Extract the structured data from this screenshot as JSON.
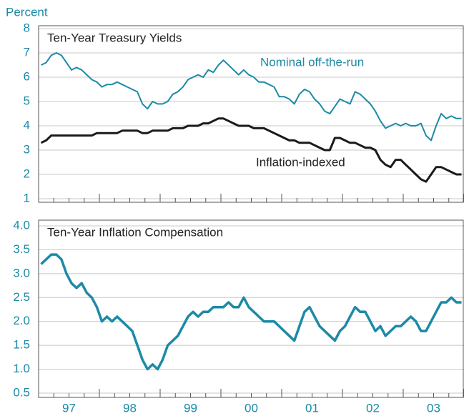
{
  "chart_data": [
    {
      "type": "line",
      "y_label": "Percent",
      "title": "Ten-Year Treasury Yields",
      "ylim": [
        1,
        8
      ],
      "yticks": [
        1,
        2,
        3,
        4,
        5,
        6,
        7,
        8
      ],
      "grid": true,
      "series": [
        {
          "name": "Nominal off-the-run",
          "color": "#1c8aa6",
          "values": [
            6.5,
            6.6,
            6.9,
            7.0,
            6.9,
            6.6,
            6.3,
            6.4,
            6.3,
            6.1,
            5.9,
            5.8,
            5.6,
            5.7,
            5.7,
            5.8,
            5.7,
            5.6,
            5.5,
            5.4,
            4.9,
            4.7,
            5.0,
            4.9,
            4.9,
            5.0,
            5.3,
            5.4,
            5.6,
            5.9,
            6.0,
            6.1,
            6.0,
            6.3,
            6.2,
            6.5,
            6.7,
            6.5,
            6.3,
            6.1,
            6.3,
            6.1,
            6.0,
            5.8,
            5.8,
            5.7,
            5.6,
            5.2,
            5.2,
            5.1,
            4.9,
            5.3,
            5.5,
            5.4,
            5.1,
            4.9,
            4.6,
            4.5,
            4.8,
            5.1,
            5.0,
            4.9,
            5.4,
            5.3,
            5.1,
            4.9,
            4.6,
            4.2,
            3.9,
            4.0,
            4.1,
            4.0,
            4.1,
            4.0,
            4.0,
            4.1,
            3.6,
            3.4,
            4.0,
            4.5,
            4.3,
            4.4,
            4.3,
            4.3
          ]
        },
        {
          "name": "Inflation-indexed",
          "color": "#1a1a1a",
          "values": [
            3.3,
            3.4,
            3.6,
            3.6,
            3.6,
            3.6,
            3.6,
            3.6,
            3.6,
            3.6,
            3.6,
            3.7,
            3.7,
            3.7,
            3.7,
            3.7,
            3.8,
            3.8,
            3.8,
            3.8,
            3.7,
            3.7,
            3.8,
            3.8,
            3.8,
            3.8,
            3.9,
            3.9,
            3.9,
            4.0,
            4.0,
            4.0,
            4.1,
            4.1,
            4.2,
            4.3,
            4.3,
            4.2,
            4.1,
            4.0,
            4.0,
            4.0,
            3.9,
            3.9,
            3.9,
            3.8,
            3.7,
            3.6,
            3.5,
            3.4,
            3.4,
            3.3,
            3.3,
            3.3,
            3.2,
            3.1,
            3.0,
            3.0,
            3.5,
            3.5,
            3.4,
            3.3,
            3.3,
            3.2,
            3.1,
            3.1,
            3.0,
            2.6,
            2.4,
            2.3,
            2.6,
            2.6,
            2.4,
            2.2,
            2.0,
            1.8,
            1.7,
            2.0,
            2.3,
            2.3,
            2.2,
            2.1,
            2.0,
            2.0
          ]
        }
      ]
    },
    {
      "type": "line",
      "title": "Ten-Year Inflation Compensation",
      "categories": [
        null,
        null,
        null,
        null,
        null,
        null,
        "97",
        null,
        null,
        null,
        null,
        null,
        null,
        null,
        null,
        null,
        null,
        null,
        "98",
        null,
        null,
        null,
        null,
        null,
        null,
        null,
        null,
        null,
        null,
        null,
        "99",
        null,
        null,
        null,
        null,
        null,
        null,
        null,
        null,
        null,
        null,
        null,
        "00",
        null,
        null,
        null,
        null,
        null,
        null,
        null,
        null,
        null,
        null,
        null,
        "01",
        null,
        null,
        null,
        null,
        null,
        null,
        null,
        null,
        null,
        null,
        null,
        "02",
        null,
        null,
        null,
        null,
        null,
        null,
        null,
        null,
        null,
        null,
        null,
        "03",
        null,
        null,
        null,
        null,
        null
      ],
      "ylim": [
        0.5,
        4.0
      ],
      "yticks": [
        0.5,
        {
          "value": 1,
          "label": "1.0"
        },
        1.5,
        {
          "value": 2,
          "label": "2.0"
        },
        2.5,
        {
          "value": 3,
          "label": "3.0"
        },
        3.5,
        {
          "value": 4,
          "label": "4.0"
        }
      ],
      "grid": true,
      "series": [
        {
          "name": "Ten-Year Inflation Compensation",
          "color": "#1c8aa6",
          "values": [
            3.2,
            3.3,
            3.4,
            3.4,
            3.3,
            3.0,
            2.8,
            2.7,
            2.8,
            2.6,
            2.5,
            2.3,
            2.0,
            2.1,
            2.0,
            2.1,
            2.0,
            1.9,
            1.8,
            1.5,
            1.2,
            1.0,
            1.1,
            1.0,
            1.2,
            1.5,
            1.6,
            1.7,
            1.9,
            2.1,
            2.2,
            2.1,
            2.2,
            2.2,
            2.3,
            2.3,
            2.3,
            2.4,
            2.3,
            2.3,
            2.5,
            2.3,
            2.2,
            2.1,
            2.0,
            2.0,
            2.0,
            1.9,
            1.8,
            1.7,
            1.6,
            1.9,
            2.2,
            2.3,
            2.1,
            1.9,
            1.8,
            1.7,
            1.6,
            1.8,
            1.9,
            2.1,
            2.3,
            2.2,
            2.2,
            2.0,
            1.8,
            1.9,
            1.7,
            1.8,
            1.9,
            1.9,
            2.0,
            2.1,
            2.0,
            1.8,
            1.8,
            2.0,
            2.2,
            2.4,
            2.4,
            2.5,
            2.4,
            2.4
          ]
        }
      ]
    }
  ]
}
